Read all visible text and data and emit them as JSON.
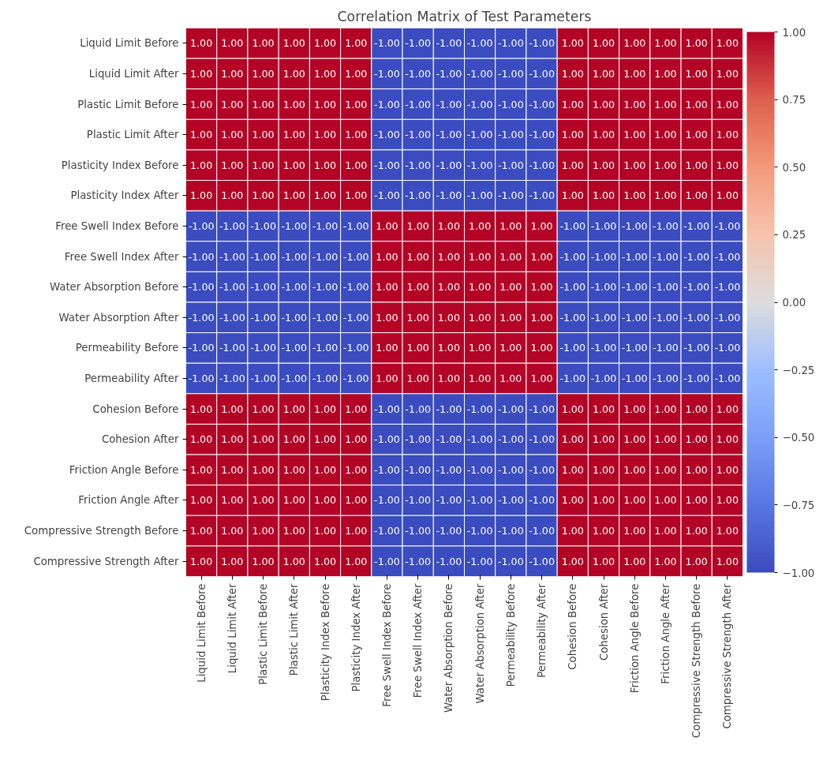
{
  "chart_data": {
    "type": "heatmap",
    "title": "Correlation Matrix of Test Parameters",
    "categories": [
      "Liquid Limit Before",
      "Liquid Limit After",
      "Plastic Limit Before",
      "Plastic Limit After",
      "Plasticity Index Before",
      "Plasticity Index After",
      "Free Swell Index Before",
      "Free Swell Index After",
      "Water Absorption Before",
      "Water Absorption After",
      "Permeability Before",
      "Permeability After",
      "Cohesion Before",
      "Cohesion After",
      "Friction Angle Before",
      "Friction Angle After",
      "Compressive Strength Before",
      "Compressive Strength After"
    ],
    "y_categories": [
      "Liquid Limit Before",
      "Liquid Limit After",
      "Plastic Limit Before",
      "Plastic Limit After",
      "Plasticity Index Before",
      "Plasticity Index After",
      "Free Swell Index Before",
      "Free Swell Index After",
      "Water Absorption Before",
      "Water Absorption After",
      "Permeability Before",
      "Permeability After",
      "Cohesion Before",
      "Cohesion After",
      "Friction Angle Before",
      "Friction Angle After",
      "Compressive Strength Before",
      "Compressive Strength After"
    ],
    "cells": [
      [
        1,
        1,
        1,
        1,
        1,
        1,
        -1,
        -1,
        -1,
        -1,
        -1,
        -1,
        1,
        1,
        1,
        1,
        1,
        1
      ],
      [
        1,
        1,
        1,
        1,
        1,
        1,
        -1,
        -1,
        -1,
        -1,
        -1,
        -1,
        1,
        1,
        1,
        1,
        1,
        1
      ],
      [
        1,
        1,
        1,
        1,
        1,
        1,
        -1,
        -1,
        -1,
        -1,
        -1,
        -1,
        1,
        1,
        1,
        1,
        1,
        1
      ],
      [
        1,
        1,
        1,
        1,
        1,
        1,
        -1,
        -1,
        -1,
        -1,
        -1,
        -1,
        1,
        1,
        1,
        1,
        1,
        1
      ],
      [
        1,
        1,
        1,
        1,
        1,
        1,
        -1,
        -1,
        -1,
        -1,
        -1,
        -1,
        1,
        1,
        1,
        1,
        1,
        1
      ],
      [
        1,
        1,
        1,
        1,
        1,
        1,
        -1,
        -1,
        -1,
        -1,
        -1,
        -1,
        1,
        1,
        1,
        1,
        1,
        1
      ],
      [
        -1,
        -1,
        -1,
        -1,
        -1,
        -1,
        1,
        1,
        1,
        1,
        1,
        1,
        -1,
        -1,
        -1,
        -1,
        -1,
        -1
      ],
      [
        -1,
        -1,
        -1,
        -1,
        -1,
        -1,
        1,
        1,
        1,
        1,
        1,
        1,
        -1,
        -1,
        -1,
        -1,
        -1,
        -1
      ],
      [
        -1,
        -1,
        -1,
        -1,
        -1,
        -1,
        1,
        1,
        1,
        1,
        1,
        1,
        -1,
        -1,
        -1,
        -1,
        -1,
        -1
      ],
      [
        -1,
        -1,
        -1,
        -1,
        -1,
        -1,
        1,
        1,
        1,
        1,
        1,
        1,
        -1,
        -1,
        -1,
        -1,
        -1,
        -1
      ],
      [
        -1,
        -1,
        -1,
        -1,
        -1,
        -1,
        1,
        1,
        1,
        1,
        1,
        1,
        -1,
        -1,
        -1,
        -1,
        -1,
        -1
      ],
      [
        -1,
        -1,
        -1,
        -1,
        -1,
        -1,
        1,
        1,
        1,
        1,
        1,
        1,
        -1,
        -1,
        -1,
        -1,
        -1,
        -1
      ],
      [
        1,
        1,
        1,
        1,
        1,
        1,
        -1,
        -1,
        -1,
        -1,
        -1,
        -1,
        1,
        1,
        1,
        1,
        1,
        1
      ],
      [
        1,
        1,
        1,
        1,
        1,
        1,
        -1,
        -1,
        -1,
        -1,
        -1,
        -1,
        1,
        1,
        1,
        1,
        1,
        1
      ],
      [
        1,
        1,
        1,
        1,
        1,
        1,
        -1,
        -1,
        -1,
        -1,
        -1,
        -1,
        1,
        1,
        1,
        1,
        1,
        1
      ],
      [
        1,
        1,
        1,
        1,
        1,
        1,
        -1,
        -1,
        -1,
        -1,
        -1,
        -1,
        1,
        1,
        1,
        1,
        1,
        1
      ],
      [
        1,
        1,
        1,
        1,
        1,
        1,
        -1,
        -1,
        -1,
        -1,
        -1,
        -1,
        1,
        1,
        1,
        1,
        1,
        1
      ],
      [
        1,
        1,
        1,
        1,
        1,
        1,
        -1,
        -1,
        -1,
        -1,
        -1,
        -1,
        1,
        1,
        1,
        1,
        1,
        1
      ]
    ],
    "cell_labels": [
      [
        "1.00",
        "1.00",
        "1.00",
        "1.00",
        "1.00",
        "1.00",
        "-1.00",
        "-1.00",
        "-1.00",
        "-1.00",
        "-1.00",
        "-1.00",
        "1.00",
        "1.00",
        "1.00",
        "1.00",
        "1.00",
        "1.00"
      ],
      [
        "1.00",
        "1.00",
        "1.00",
        "1.00",
        "1.00",
        "1.00",
        "-1.00",
        "-1.00",
        "-1.00",
        "-1.00",
        "-1.00",
        "-1.00",
        "1.00",
        "1.00",
        "1.00",
        "1.00",
        "1.00",
        "1.00"
      ],
      [
        "1.00",
        "1.00",
        "1.00",
        "1.00",
        "1.00",
        "1.00",
        "-1.00",
        "-1.00",
        "-1.00",
        "-1.00",
        "-1.00",
        "-1.00",
        "1.00",
        "1.00",
        "1.00",
        "1.00",
        "1.00",
        "1.00"
      ],
      [
        "1.00",
        "1.00",
        "1.00",
        "1.00",
        "1.00",
        "1.00",
        "-1.00",
        "-1.00",
        "-1.00",
        "-1.00",
        "-1.00",
        "-1.00",
        "1.00",
        "1.00",
        "1.00",
        "1.00",
        "1.00",
        "1.00"
      ],
      [
        "1.00",
        "1.00",
        "1.00",
        "1.00",
        "1.00",
        "1.00",
        "-1.00",
        "-1.00",
        "-1.00",
        "-1.00",
        "-1.00",
        "-1.00",
        "1.00",
        "1.00",
        "1.00",
        "1.00",
        "1.00",
        "1.00"
      ],
      [
        "1.00",
        "1.00",
        "1.00",
        "1.00",
        "1.00",
        "1.00",
        "-1.00",
        "-1.00",
        "-1.00",
        "-1.00",
        "-1.00",
        "-1.00",
        "1.00",
        "1.00",
        "1.00",
        "1.00",
        "1.00",
        "1.00"
      ],
      [
        "-1.00",
        "-1.00",
        "-1.00",
        "-1.00",
        "-1.00",
        "-1.00",
        "1.00",
        "1.00",
        "1.00",
        "1.00",
        "1.00",
        "1.00",
        "-1.00",
        "-1.00",
        "-1.00",
        "-1.00",
        "-1.00",
        "-1.00"
      ],
      [
        "-1.00",
        "-1.00",
        "-1.00",
        "-1.00",
        "-1.00",
        "-1.00",
        "1.00",
        "1.00",
        "1.00",
        "1.00",
        "1.00",
        "1.00",
        "-1.00",
        "-1.00",
        "-1.00",
        "-1.00",
        "-1.00",
        "-1.00"
      ],
      [
        "-1.00",
        "-1.00",
        "-1.00",
        "-1.00",
        "-1.00",
        "-1.00",
        "1.00",
        "1.00",
        "1.00",
        "1.00",
        "1.00",
        "1.00",
        "-1.00",
        "-1.00",
        "-1.00",
        "-1.00",
        "-1.00",
        "-1.00"
      ],
      [
        "-1.00",
        "-1.00",
        "-1.00",
        "-1.00",
        "-1.00",
        "-1.00",
        "1.00",
        "1.00",
        "1.00",
        "1.00",
        "1.00",
        "1.00",
        "-1.00",
        "-1.00",
        "-1.00",
        "-1.00",
        "-1.00",
        "-1.00"
      ],
      [
        "-1.00",
        "-1.00",
        "-1.00",
        "-1.00",
        "-1.00",
        "-1.00",
        "1.00",
        "1.00",
        "1.00",
        "1.00",
        "1.00",
        "1.00",
        "-1.00",
        "-1.00",
        "-1.00",
        "-1.00",
        "-1.00",
        "-1.00"
      ],
      [
        "-1.00",
        "-1.00",
        "-1.00",
        "-1.00",
        "-1.00",
        "-1.00",
        "1.00",
        "1.00",
        "1.00",
        "1.00",
        "1.00",
        "1.00",
        "-1.00",
        "-1.00",
        "-1.00",
        "-1.00",
        "-1.00",
        "-1.00"
      ],
      [
        "1.00",
        "1.00",
        "1.00",
        "1.00",
        "1.00",
        "1.00",
        "-1.00",
        "-1.00",
        "-1.00",
        "-1.00",
        "-1.00",
        "-1.00",
        "1.00",
        "1.00",
        "1.00",
        "1.00",
        "1.00",
        "1.00"
      ],
      [
        "1.00",
        "1.00",
        "1.00",
        "1.00",
        "1.00",
        "1.00",
        "-1.00",
        "-1.00",
        "-1.00",
        "-1.00",
        "-1.00",
        "-1.00",
        "1.00",
        "1.00",
        "1.00",
        "1.00",
        "1.00",
        "1.00"
      ],
      [
        "1.00",
        "1.00",
        "1.00",
        "1.00",
        "1.00",
        "1.00",
        "-1.00",
        "-1.00",
        "-1.00",
        "-1.00",
        "-1.00",
        "-1.00",
        "1.00",
        "1.00",
        "1.00",
        "1.00",
        "1.00",
        "1.00"
      ],
      [
        "1.00",
        "1.00",
        "1.00",
        "1.00",
        "1.00",
        "1.00",
        "-1.00",
        "-1.00",
        "-1.00",
        "-1.00",
        "-1.00",
        "-1.00",
        "1.00",
        "1.00",
        "1.00",
        "1.00",
        "1.00",
        "1.00"
      ],
      [
        "1.00",
        "1.00",
        "1.00",
        "1.00",
        "1.00",
        "1.00",
        "-1.00",
        "-1.00",
        "-1.00",
        "-1.00",
        "-1.00",
        "-1.00",
        "1.00",
        "1.00",
        "1.00",
        "1.00",
        "1.00",
        "1.00"
      ],
      [
        "1.00",
        "1.00",
        "1.00",
        "1.00",
        "1.00",
        "1.00",
        "-1.00",
        "-1.00",
        "-1.00",
        "-1.00",
        "-1.00",
        "-1.00",
        "1.00",
        "1.00",
        "1.00",
        "1.00",
        "1.00",
        "1.00"
      ]
    ],
    "clim": [
      -1,
      1
    ],
    "cticks": [
      {
        "value": -1,
        "label": "−1.00"
      },
      {
        "value": -0.75,
        "label": "−0.75"
      },
      {
        "value": -0.5,
        "label": "−0.50"
      },
      {
        "value": -0.25,
        "label": "−0.25"
      },
      {
        "value": 0,
        "label": "0.00"
      },
      {
        "value": 0.25,
        "label": "0.25"
      },
      {
        "value": 0.5,
        "label": "0.50"
      },
      {
        "value": 0.75,
        "label": "0.75"
      },
      {
        "value": 1,
        "label": "1.00"
      }
    ]
  }
}
